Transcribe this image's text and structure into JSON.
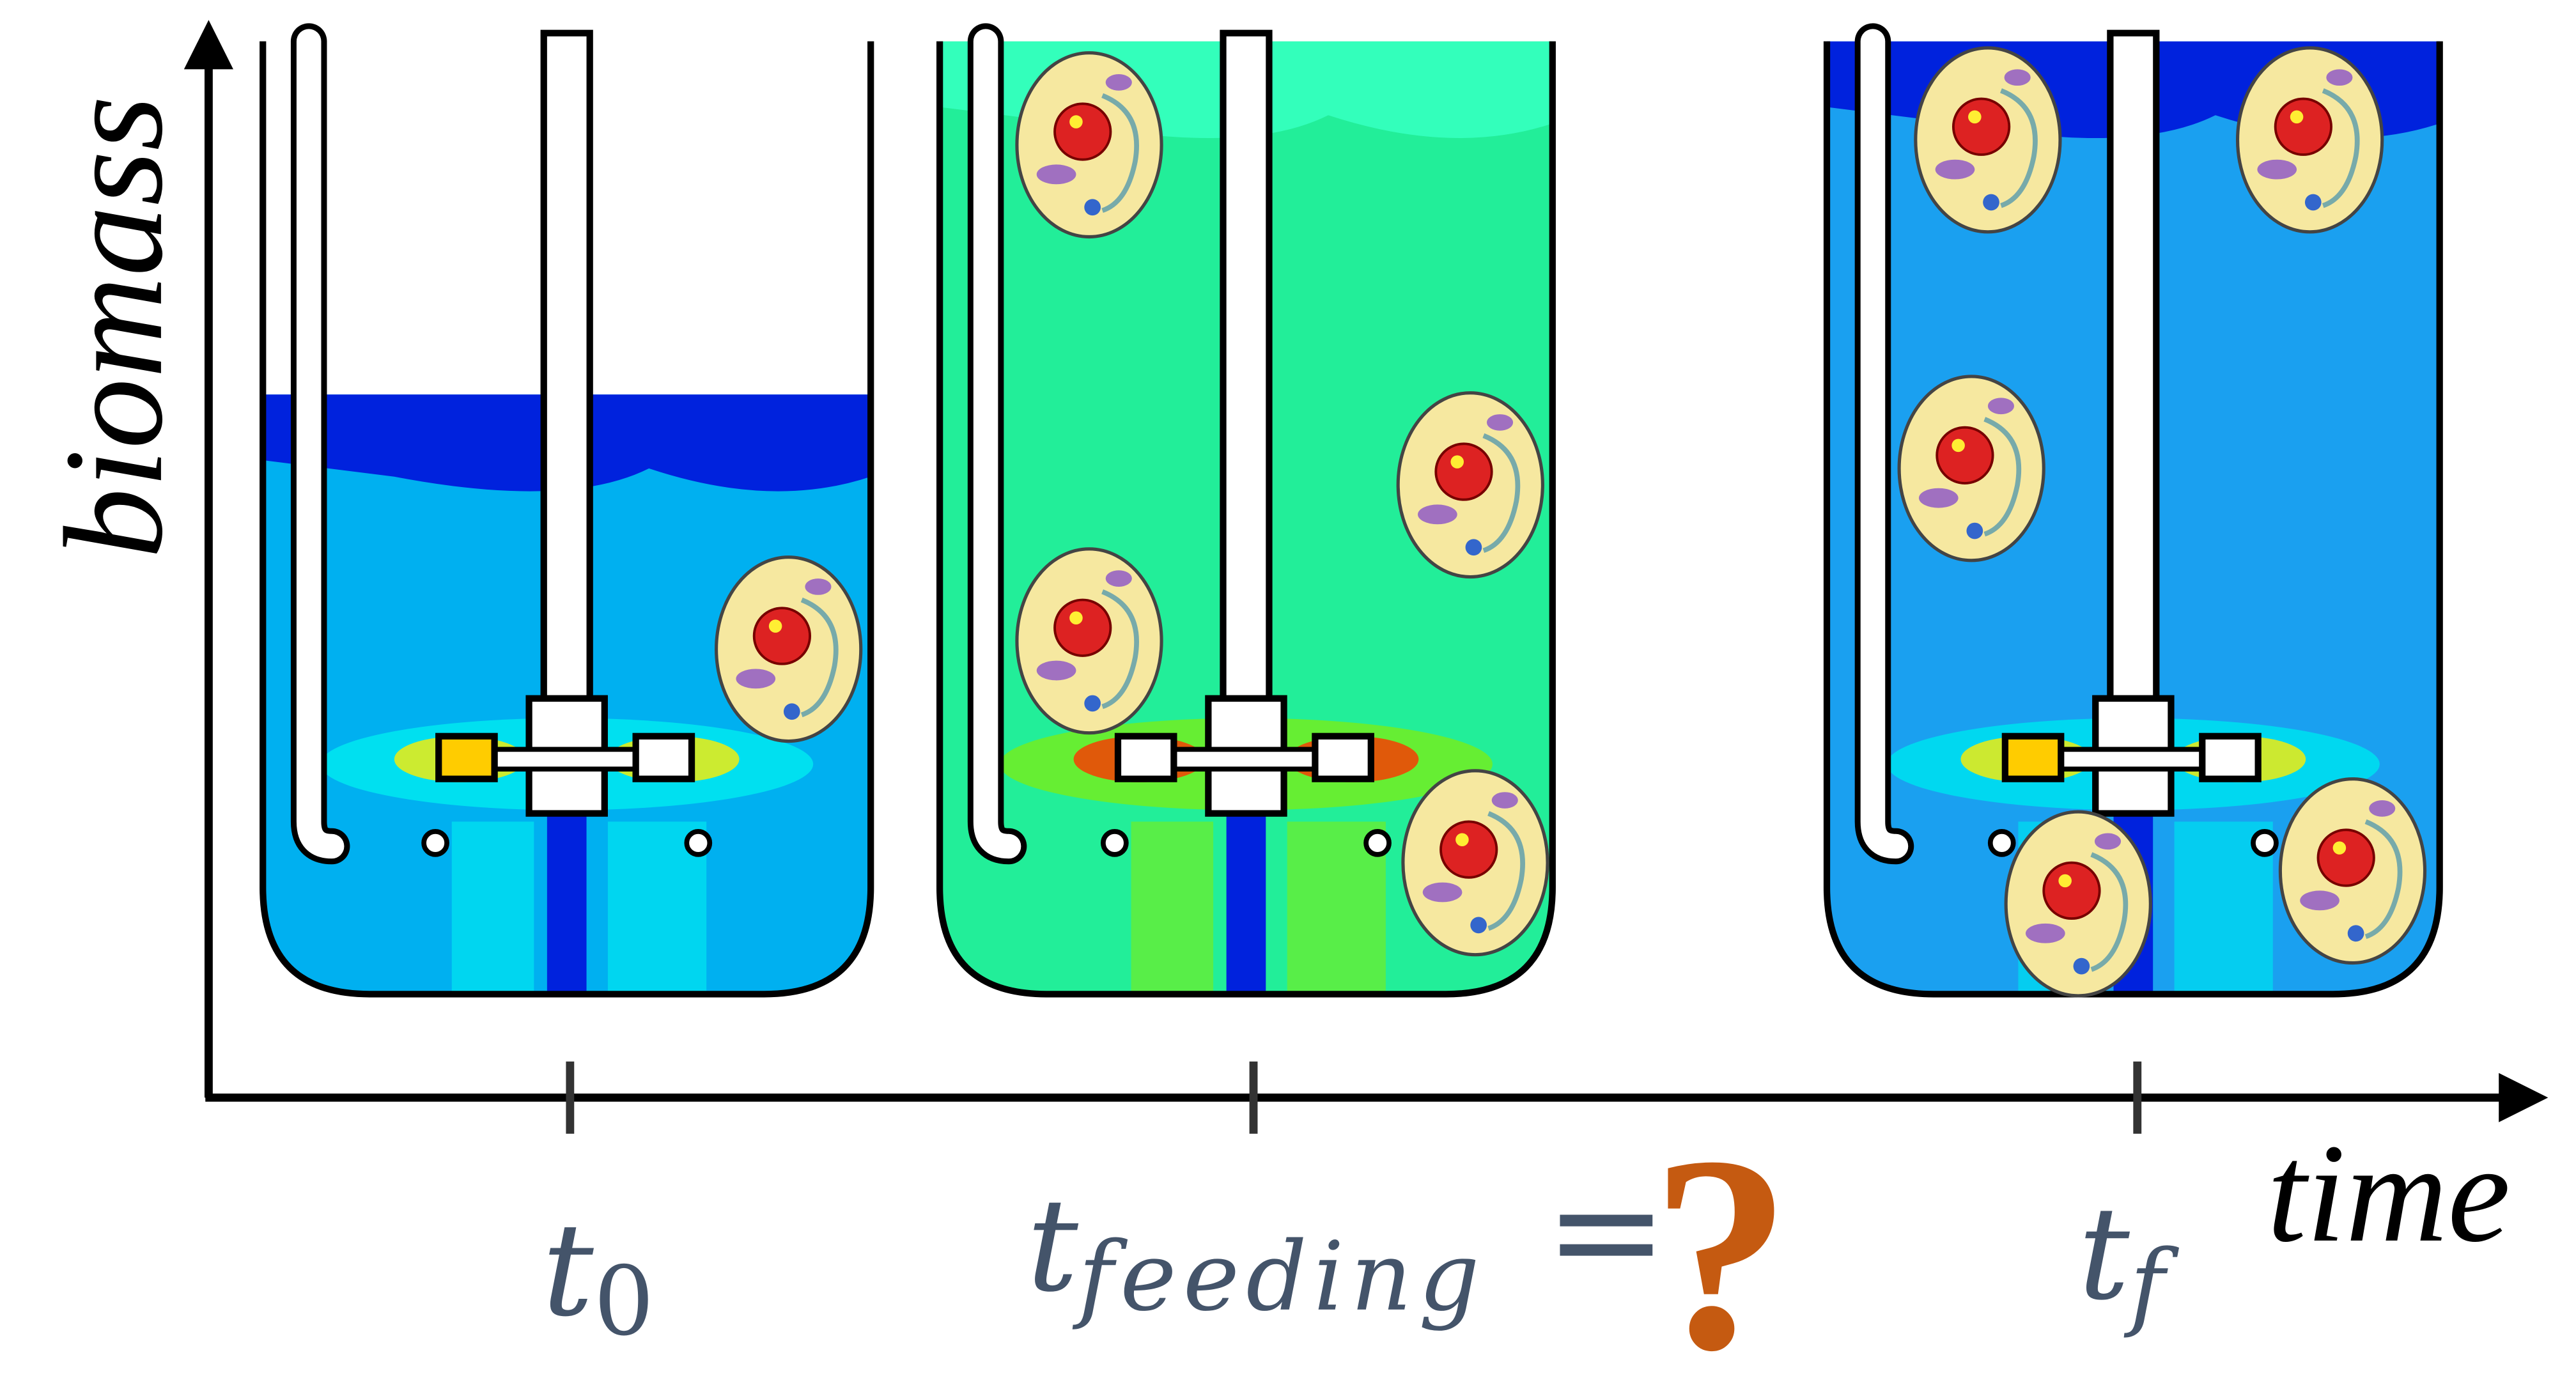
{
  "axes": {
    "y_label": "biomass",
    "x_label": "time"
  },
  "time_points": [
    {
      "symbol": "t",
      "subscript": "0"
    },
    {
      "symbol": "t",
      "subscript": "feeding"
    },
    {
      "symbol": "t",
      "subscript": "f"
    }
  ],
  "question": {
    "equals": "=",
    "mark": "?"
  }
}
